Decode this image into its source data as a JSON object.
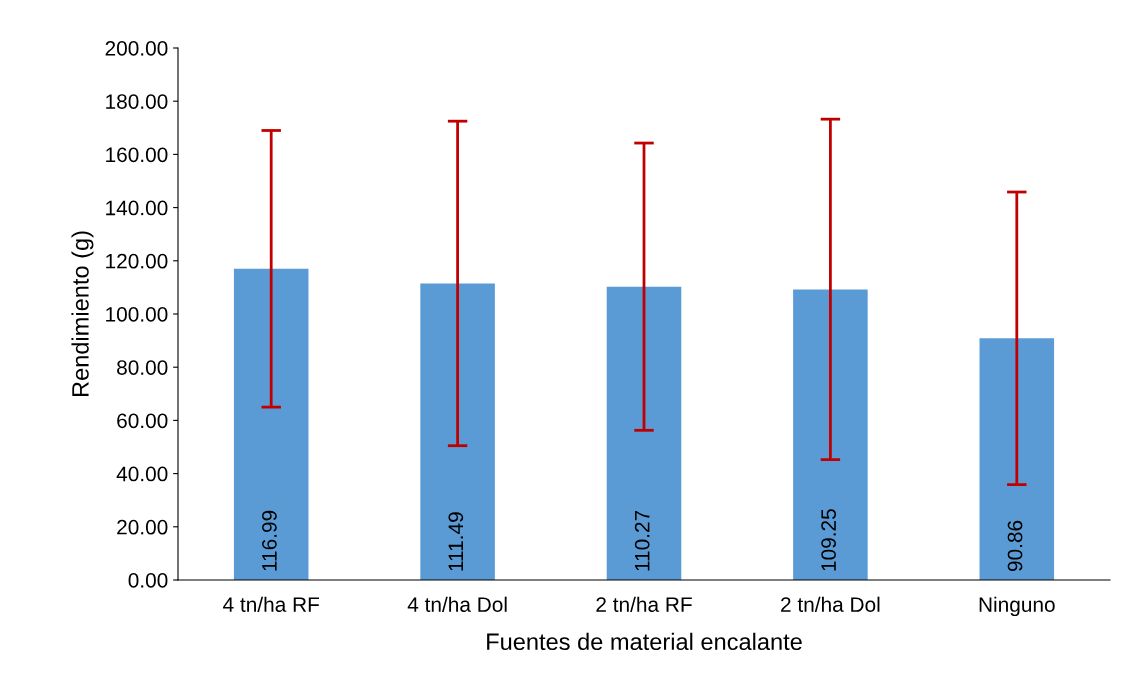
{
  "chart_data": {
    "type": "bar",
    "xlabel": "Fuentes de material encalante",
    "ylabel": "Rendimiento (g)",
    "categories": [
      "4 tn/ha RF",
      "4 tn/ha Dol",
      "2 tn/ha RF",
      "2 tn/ha Dol",
      "Ninguno"
    ],
    "values": [
      116.99,
      111.49,
      110.27,
      109.25,
      90.86
    ],
    "errors": [
      52,
      61,
      54,
      64,
      55
    ],
    "color": "#5b9bd5",
    "ylim": [
      0,
      200
    ],
    "yticks": [
      {
        "value": 0,
        "label": "0.00"
      },
      {
        "value": 20,
        "label": "20.00"
      },
      {
        "value": 40,
        "label": "40.00"
      },
      {
        "value": 60,
        "label": "60.00"
      },
      {
        "value": 80,
        "label": "80.00"
      },
      {
        "value": 100,
        "label": "100.00"
      },
      {
        "value": 120,
        "label": "120.00"
      },
      {
        "value": 140,
        "label": "140.00"
      },
      {
        "value": 160,
        "label": "160.00"
      },
      {
        "value": 180,
        "label": "180.00"
      },
      {
        "value": 200,
        "label": "200.00"
      }
    ],
    "data_labels": true,
    "grid": false,
    "legend": false
  }
}
